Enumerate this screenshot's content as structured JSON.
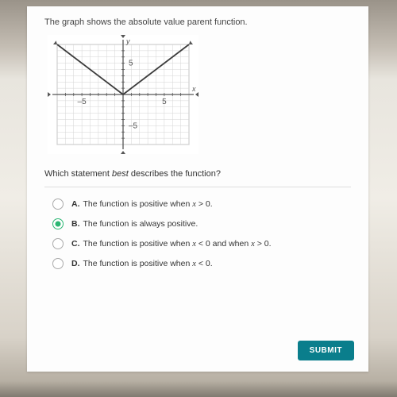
{
  "intro_text": "The graph shows the absolute value parent function.",
  "question_prefix": "Which statement ",
  "question_em": "best",
  "question_suffix": " describes the function?",
  "chart": {
    "type": "line",
    "width": 190,
    "height": 150,
    "bg": "#ffffff",
    "border_color": "#b8b8b8",
    "grid_color": "#d4d4d4",
    "axis_color": "#565656",
    "line_color": "#3c3c3c",
    "tick_fontsize": 10,
    "xlim": [
      -8,
      8
    ],
    "ylim": [
      -8,
      8
    ],
    "x_major": [
      -5,
      5
    ],
    "y_major": [
      -5,
      5
    ],
    "series": {
      "x": [
        -8,
        0,
        8
      ],
      "y": [
        8,
        0,
        8
      ]
    },
    "arrows": true,
    "axis_labels": {
      "x": "x",
      "y": "y"
    }
  },
  "options": [
    {
      "letter": "A.",
      "prefix": "The function is positive when ",
      "math": "x > 0.",
      "selected": false
    },
    {
      "letter": "B.",
      "prefix": "The function is always positive.",
      "math": "",
      "selected": true
    },
    {
      "letter": "C.",
      "prefix": "The function is positive when ",
      "math": "x < 0 and when x > 0.",
      "selected": false
    },
    {
      "letter": "D.",
      "prefix": "The function is positive when ",
      "math": "x < 0.",
      "selected": false
    }
  ],
  "submit_label": "SUBMIT",
  "colors": {
    "card_bg": "#fdfdfd",
    "submit_bg": "#0a7e8c",
    "accent": "#2bb673",
    "text": "#333333"
  }
}
